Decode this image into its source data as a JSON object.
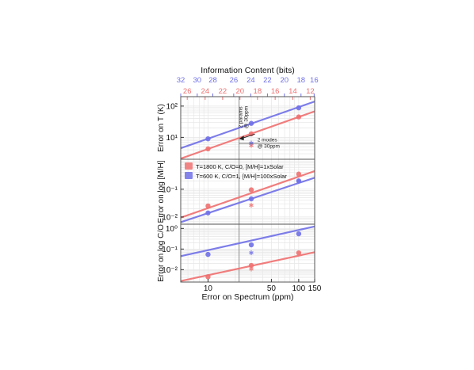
{
  "colors": {
    "hot": "#f07070",
    "cool": "#7070e8",
    "hot_fill": "#f78a8a",
    "cool_fill": "#8a8af5",
    "frame": "#555555",
    "grid": "#e6e6e6",
    "annotation": "#222222"
  },
  "chart_data": {
    "type": "scatter",
    "x_scale": "log",
    "xlim": [
      5,
      150
    ],
    "xlabel": "Error on Spectrum (ppm)",
    "x_ticks": [
      {
        "value": 10,
        "label": "10"
      },
      {
        "value": 50,
        "label": "50"
      },
      {
        "value": 100,
        "label": "100"
      },
      {
        "value": 150,
        "label": "150"
      }
    ],
    "top_axis": {
      "title": "Information Content (bits)",
      "cool_ticks": [
        {
          "value": 5.0,
          "label": "32"
        },
        {
          "value": 7.6,
          "label": "30"
        },
        {
          "value": 11.3,
          "label": "28"
        },
        {
          "value": 19.2,
          "label": "26"
        },
        {
          "value": 29.6,
          "label": "24"
        },
        {
          "value": 45.2,
          "label": "22"
        },
        {
          "value": 69.5,
          "label": "20"
        },
        {
          "value": 106,
          "label": "18"
        },
        {
          "value": 148,
          "label": "16"
        }
      ],
      "hot_ticks": [
        {
          "value": 5.9,
          "label": "26"
        },
        {
          "value": 9.3,
          "label": "24"
        },
        {
          "value": 14.5,
          "label": "22"
        },
        {
          "value": 22.5,
          "label": "20"
        },
        {
          "value": 35.1,
          "label": "18"
        },
        {
          "value": 55,
          "label": "16"
        },
        {
          "value": 86,
          "label": "14"
        },
        {
          "value": 134,
          "label": "12"
        }
      ]
    },
    "vline_x": 22,
    "legend": {
      "placement": "top-left of middle panel",
      "entries": [
        {
          "label": "T=1800 K, C/O=0, [M/H]=1xSolar",
          "color": "#f07070"
        },
        {
          "label": "T=600 K, C/O=1, [M/H]=100xSolar",
          "color": "#7070e8"
        }
      ]
    },
    "panels": [
      {
        "ylabel": "Error on T (K)",
        "y_scale": "log",
        "ylim": [
          2,
          200
        ],
        "y_ticks": [
          {
            "value": 10,
            "label": "10¹"
          },
          {
            "value": 100,
            "label": "10²"
          }
        ],
        "series": [
          {
            "color": "hot",
            "points": [
              [
                10,
                4.3
              ],
              [
                30,
                13
              ],
              [
                100,
                45
              ]
            ],
            "line": [
              [
                5,
                2.1
              ],
              [
                150,
                68
              ]
            ]
          },
          {
            "color": "cool",
            "points": [
              [
                10,
                9
              ],
              [
                30,
                28
              ],
              [
                100,
                88
              ]
            ],
            "line": [
              [
                5,
                4.5
              ],
              [
                150,
                140
              ]
            ]
          }
        ],
        "stars": [
          {
            "color": "hot",
            "x": 30,
            "y": 5.6
          },
          {
            "color": "cool",
            "x": 30,
            "y": 6.6
          }
        ],
        "annotations": [
          {
            "text": "2 params\n@ 30ppm",
            "rotated": true,
            "arrow_to": [
              22,
              9
            ]
          },
          {
            "text": "2 modes\n@ 30ppm",
            "rotated": false,
            "arrow_to": [
              22,
              6.6
            ]
          }
        ]
      },
      {
        "ylabel": "Error on log [M/H]",
        "y_scale": "log",
        "ylim": [
          0.0055,
          1.2
        ],
        "y_ticks": [
          {
            "value": 0.01,
            "label": "10⁻²"
          },
          {
            "value": 0.1,
            "label": "10⁻¹"
          }
        ],
        "series": [
          {
            "color": "hot",
            "points": [
              [
                10,
                0.025
              ],
              [
                30,
                0.095
              ],
              [
                100,
                0.35
              ]
            ],
            "line": [
              [
                5,
                0.0095
              ],
              [
                150,
                0.45
              ]
            ]
          },
          {
            "color": "cool",
            "points": [
              [
                10,
                0.014
              ],
              [
                30,
                0.045
              ],
              [
                100,
                0.2
              ]
            ],
            "line": [
              [
                5,
                0.0065
              ],
              [
                150,
                0.26
              ]
            ]
          }
        ],
        "stars": [
          {
            "color": "hot",
            "x": 30,
            "y": 0.027
          },
          {
            "color": "cool",
            "x": 100,
            "y": 0.2
          }
        ]
      },
      {
        "ylabel": "Error on log C/O",
        "y_scale": "log",
        "ylim": [
          0.0025,
          1.6
        ],
        "y_ticks": [
          {
            "value": 0.01,
            "label": "10⁻²"
          },
          {
            "value": 0.1,
            "label": "10⁻¹"
          },
          {
            "value": 1,
            "label": "10⁰"
          }
        ],
        "series": [
          {
            "color": "hot",
            "points": [
              [
                10,
                0.0045
              ],
              [
                30,
                0.016
              ],
              [
                100,
                0.065
              ]
            ],
            "line": [
              [
                5,
                0.0028
              ],
              [
                150,
                0.07
              ]
            ]
          },
          {
            "color": "cool",
            "points": [
              [
                10,
                0.055
              ],
              [
                30,
                0.16
              ],
              [
                100,
                0.55
              ]
            ],
            "line": [
              [
                5,
                0.045
              ],
              [
                150,
                1.25
              ]
            ]
          }
        ],
        "stars": [
          {
            "color": "hot",
            "x": 30,
            "y": 0.011
          },
          {
            "color": "cool",
            "x": 30,
            "y": 0.065
          }
        ]
      }
    ]
  }
}
